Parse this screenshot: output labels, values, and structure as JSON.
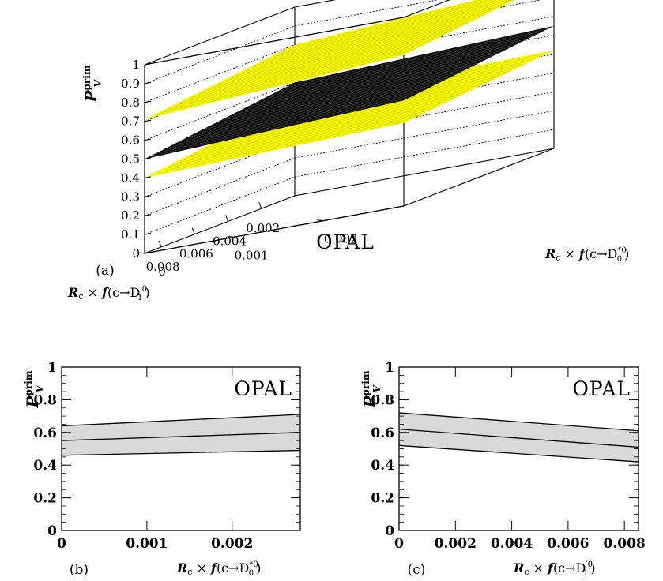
{
  "chart_data": [
    {
      "panel_label": "(a)",
      "type": "surface3d",
      "ylabel": {
        "main": "P",
        "sub": "V",
        "sup": "prim"
      },
      "xlabel": "R_c × f(c→D'_1^0)",
      "zlabel": "R_c × f(c→D*_0^0)",
      "experiment": "OPAL",
      "xlim": [
        0,
        0.009
      ],
      "zlim": [
        0,
        0.0029
      ],
      "ylim": [
        0,
        1
      ],
      "x_ticks": [
        "0.008",
        "0.006",
        "0.004",
        "0.002"
      ],
      "z_ticks": [
        "0",
        "0.001",
        "0.002"
      ],
      "y_ticks": [
        "0",
        "0.1",
        "0.2",
        "0.3",
        "0.4",
        "0.5",
        "0.6",
        "0.7",
        "0.8",
        "0.9",
        "1"
      ],
      "surfaces": [
        {
          "name": "upper",
          "color": "#ffff00",
          "corners": {
            "x0z0": 0.8,
            "x9z0": 0.71,
            "x0z3": 0.89,
            "x9z3": 0.8
          }
        },
        {
          "name": "central",
          "color": "#000000",
          "corners": {
            "x0z0": 0.6,
            "x9z0": 0.5,
            "x0z3": 0.65,
            "x9z3": 0.56
          }
        },
        {
          "name": "lower",
          "color": "#ffff00",
          "corners": {
            "x0z0": 0.5,
            "x9z0": 0.4,
            "x0z3": 0.52,
            "x9z3": 0.44
          }
        }
      ]
    },
    {
      "panel_label": "(b)",
      "type": "area",
      "ylabel": {
        "main": "P",
        "sub": "V",
        "sup": "prim"
      },
      "xlabel": "R_c × f(c→D*_0^0)",
      "experiment": "OPAL",
      "xlim": [
        0,
        0.0028
      ],
      "ylim": [
        0,
        1
      ],
      "x_ticks": [
        "0",
        "0.001",
        "0.002"
      ],
      "y_ticks": [
        "0",
        "0.2",
        "0.4",
        "0.6",
        "0.8",
        "1"
      ],
      "x": [
        0,
        0.0028
      ],
      "series": [
        {
          "role": "upper",
          "values": [
            0.64,
            0.71
          ]
        },
        {
          "role": "central",
          "values": [
            0.55,
            0.6
          ]
        },
        {
          "role": "lower",
          "values": [
            0.46,
            0.49
          ]
        }
      ],
      "band_color": "#d9d9d9"
    },
    {
      "panel_label": "(c)",
      "type": "area",
      "ylabel": {
        "main": "P",
        "sub": "V",
        "sup": "prim"
      },
      "xlabel": "R_c × f(c→D'_1^0)",
      "experiment": "OPAL",
      "xlim": [
        0,
        0.0085
      ],
      "ylim": [
        0,
        1
      ],
      "x_ticks": [
        "0",
        "0.002",
        "0.004",
        "0.006",
        "0.008"
      ],
      "y_ticks": [
        "0",
        "0.2",
        "0.4",
        "0.6",
        "0.8",
        "1"
      ],
      "x": [
        0,
        0.0085
      ],
      "series": [
        {
          "role": "upper",
          "values": [
            0.72,
            0.61
          ]
        },
        {
          "role": "central",
          "values": [
            0.62,
            0.51
          ]
        },
        {
          "role": "lower",
          "values": [
            0.52,
            0.42
          ]
        }
      ],
      "band_color": "#d9d9d9"
    }
  ]
}
